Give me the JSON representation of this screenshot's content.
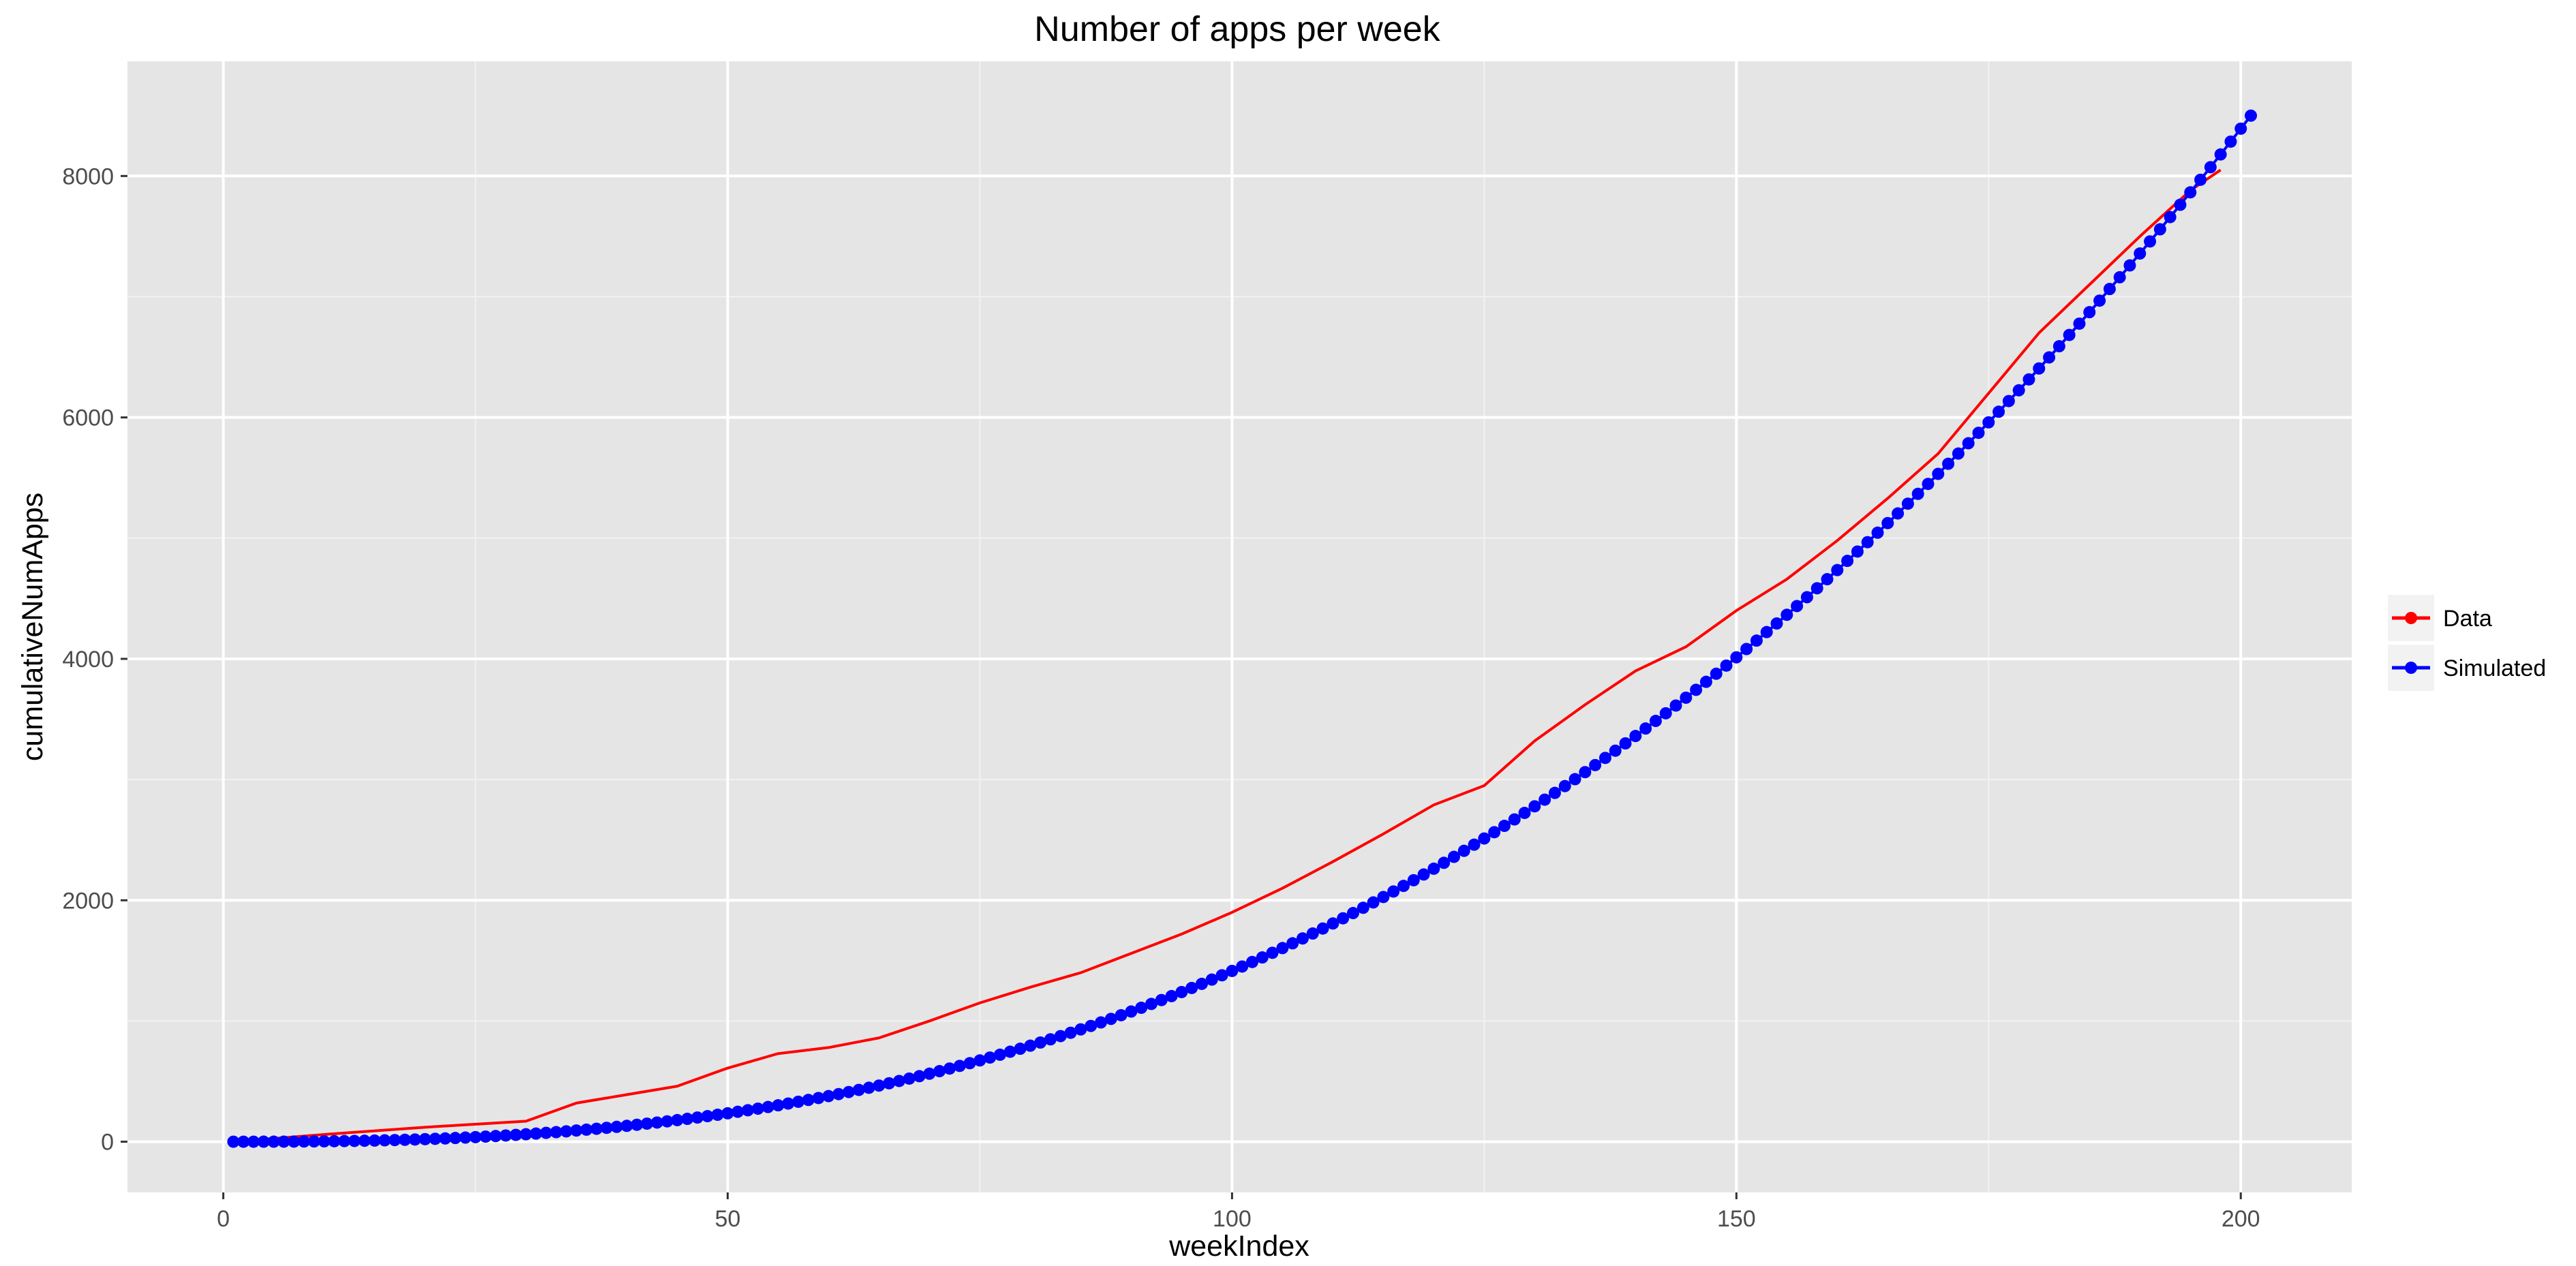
{
  "chart_data": {
    "type": "line",
    "title": "Number of apps per week",
    "xlabel": "weekIndex",
    "ylabel": "cumulativeNumApps",
    "xlim": [
      -9.5,
      211
    ],
    "ylim": [
      -420,
      8950
    ],
    "x_ticks": [
      0,
      50,
      100,
      150,
      200
    ],
    "y_ticks": [
      0,
      2000,
      4000,
      6000,
      8000
    ],
    "x_tick_labels": [
      "0",
      "50",
      "100",
      "150",
      "200"
    ],
    "y_tick_labels": [
      "0",
      "2000",
      "4000",
      "6000",
      "8000"
    ],
    "grid": true,
    "legend_position": "right",
    "series": [
      {
        "name": "Data",
        "color": "#ff0000",
        "style": "line",
        "x": [
          1,
          10,
          20,
          30,
          35,
          40,
          45,
          50,
          55,
          60,
          65,
          70,
          75,
          80,
          85,
          90,
          95,
          100,
          105,
          110,
          115,
          120,
          125,
          130,
          135,
          140,
          145,
          150,
          155,
          160,
          165,
          170,
          175,
          180,
          185,
          190,
          195,
          198
        ],
        "y": [
          0,
          60,
          120,
          170,
          320,
          390,
          460,
          610,
          730,
          780,
          860,
          1000,
          1150,
          1280,
          1400,
          1560,
          1720,
          1900,
          2100,
          2320,
          2550,
          2790,
          2950,
          3320,
          3620,
          3900,
          4100,
          4400,
          4660,
          4980,
          5330,
          5700,
          6200,
          6700,
          7100,
          7500,
          7880,
          8050
        ]
      },
      {
        "name": "Simulated",
        "color": "#0000ff",
        "style": "points",
        "x_start": 1,
        "x_end": 201,
        "y_start": 0,
        "y_end": 8500,
        "exponent": 2.55
      }
    ]
  }
}
